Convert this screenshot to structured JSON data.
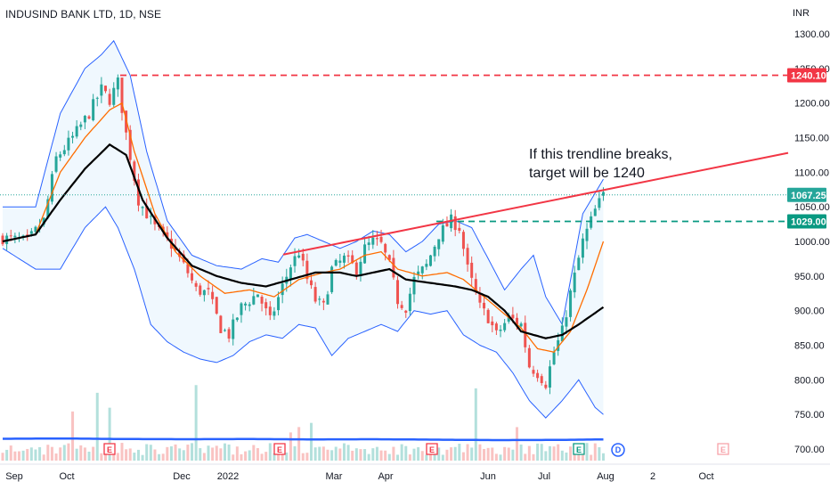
{
  "header": {
    "symbol": "INDUSIND BANK LTD, 1D, NSE",
    "currency": "INR"
  },
  "colors": {
    "up": "#26a69a",
    "down": "#ef5350",
    "band": "#2962ff",
    "sma": "#000000",
    "ema": "#ff6d00",
    "trend": "#f23645",
    "target": "#f23645",
    "support": "#089981",
    "volume_avg": "#2962ff"
  },
  "chart_data": {
    "type": "candlestick",
    "title": "INDUSIND BANK LTD, 1D, NSE",
    "ylim": [
      685,
      1315
    ],
    "y_ticks": [
      700,
      750,
      800,
      850,
      900,
      950,
      1000,
      1050,
      1100,
      1150,
      1200,
      1250,
      1300
    ],
    "y_tick_labels": [
      "700.00",
      "750.00",
      "800.00",
      "850.00",
      "900.00",
      "950.00",
      "1000.00",
      "1050.00",
      "1100.00",
      "1150.00",
      "1200.00",
      "1250.00",
      "1300.00"
    ],
    "x_ticks": [
      "Sep",
      "Oct",
      "Dec",
      "2022",
      "Mar",
      "Apr",
      "Jun",
      "Jul",
      "Aug",
      "2",
      "Oct"
    ],
    "price_path": [
      [
        0,
        1005
      ],
      [
        6,
        1000
      ],
      [
        10,
        1030
      ],
      [
        13,
        1120
      ],
      [
        17,
        1150
      ],
      [
        21,
        1185
      ],
      [
        24,
        1220
      ],
      [
        26,
        1205
      ],
      [
        28,
        1230
      ],
      [
        30,
        1155
      ],
      [
        33,
        1060
      ],
      [
        37,
        1020
      ],
      [
        41,
        995
      ],
      [
        45,
        955
      ],
      [
        47,
        930
      ],
      [
        50,
        925
      ],
      [
        53,
        875
      ],
      [
        55,
        865
      ],
      [
        58,
        905
      ],
      [
        62,
        925
      ],
      [
        65,
        885
      ],
      [
        68,
        935
      ],
      [
        70,
        965
      ],
      [
        72,
        985
      ],
      [
        74,
        945
      ],
      [
        76,
        915
      ],
      [
        78,
        905
      ],
      [
        80,
        960
      ],
      [
        83,
        975
      ],
      [
        86,
        960
      ],
      [
        88,
        990
      ],
      [
        90,
        1000
      ],
      [
        92,
        995
      ],
      [
        94,
        965
      ],
      [
        96,
        915
      ],
      [
        98,
        905
      ],
      [
        100,
        945
      ],
      [
        103,
        965
      ],
      [
        106,
        1010
      ],
      [
        109,
        1030
      ],
      [
        111,
        1020
      ],
      [
        113,
        960
      ],
      [
        116,
        905
      ],
      [
        118,
        890
      ],
      [
        120,
        865
      ],
      [
        123,
        890
      ],
      [
        126,
        880
      ],
      [
        128,
        820
      ],
      [
        130,
        810
      ],
      [
        132,
        795
      ],
      [
        134,
        840
      ],
      [
        136,
        870
      ],
      [
        138,
        925
      ],
      [
        141,
        1000
      ],
      [
        144,
        1045
      ],
      [
        146,
        1067
      ]
    ],
    "price_path_note": "x in trading-day index, y in INR (close)",
    "bollinger_upper": [
      [
        0,
        1050
      ],
      [
        8,
        1050
      ],
      [
        14,
        1185
      ],
      [
        20,
        1250
      ],
      [
        24,
        1270
      ],
      [
        27,
        1290
      ],
      [
        31,
        1240
      ],
      [
        35,
        1130
      ],
      [
        40,
        1030
      ],
      [
        46,
        980
      ],
      [
        52,
        965
      ],
      [
        58,
        960
      ],
      [
        63,
        975
      ],
      [
        67,
        970
      ],
      [
        71,
        1005
      ],
      [
        74,
        1010
      ],
      [
        78,
        1000
      ],
      [
        82,
        990
      ],
      [
        86,
        1000
      ],
      [
        90,
        1015
      ],
      [
        94,
        1010
      ],
      [
        98,
        985
      ],
      [
        102,
        1000
      ],
      [
        106,
        1025
      ],
      [
        110,
        1030
      ],
      [
        114,
        1020
      ],
      [
        118,
        975
      ],
      [
        122,
        930
      ],
      [
        126,
        960
      ],
      [
        129,
        980
      ],
      [
        132,
        920
      ],
      [
        136,
        880
      ],
      [
        141,
        1040
      ],
      [
        146,
        1090
      ]
    ],
    "bollinger_lower": [
      [
        0,
        990
      ],
      [
        8,
        960
      ],
      [
        14,
        960
      ],
      [
        20,
        1020
      ],
      [
        25,
        1050
      ],
      [
        28,
        1020
      ],
      [
        32,
        960
      ],
      [
        36,
        880
      ],
      [
        40,
        855
      ],
      [
        44,
        840
      ],
      [
        48,
        830
      ],
      [
        52,
        825
      ],
      [
        56,
        835
      ],
      [
        60,
        855
      ],
      [
        64,
        865
      ],
      [
        68,
        860
      ],
      [
        72,
        880
      ],
      [
        76,
        875
      ],
      [
        80,
        835
      ],
      [
        84,
        860
      ],
      [
        88,
        870
      ],
      [
        92,
        880
      ],
      [
        96,
        870
      ],
      [
        100,
        900
      ],
      [
        104,
        895
      ],
      [
        108,
        900
      ],
      [
        112,
        865
      ],
      [
        116,
        850
      ],
      [
        120,
        840
      ],
      [
        124,
        810
      ],
      [
        128,
        770
      ],
      [
        132,
        745
      ],
      [
        136,
        770
      ],
      [
        140,
        800
      ],
      [
        144,
        760
      ],
      [
        146,
        750
      ]
    ],
    "sma_path": [
      [
        0,
        1000
      ],
      [
        8,
        1010
      ],
      [
        14,
        1060
      ],
      [
        20,
        1105
      ],
      [
        26,
        1140
      ],
      [
        30,
        1125
      ],
      [
        34,
        1060
      ],
      [
        40,
        1005
      ],
      [
        46,
        965
      ],
      [
        52,
        950
      ],
      [
        58,
        940
      ],
      [
        64,
        935
      ],
      [
        70,
        945
      ],
      [
        76,
        955
      ],
      [
        82,
        955
      ],
      [
        86,
        950
      ],
      [
        90,
        955
      ],
      [
        94,
        960
      ],
      [
        98,
        945
      ],
      [
        104,
        940
      ],
      [
        110,
        935
      ],
      [
        114,
        930
      ],
      [
        118,
        920
      ],
      [
        122,
        900
      ],
      [
        126,
        870
      ],
      [
        132,
        860
      ],
      [
        136,
        865
      ],
      [
        140,
        880
      ],
      [
        146,
        905
      ]
    ],
    "ema_path": [
      [
        0,
        1000
      ],
      [
        8,
        1010
      ],
      [
        14,
        1100
      ],
      [
        20,
        1150
      ],
      [
        26,
        1190
      ],
      [
        29,
        1200
      ],
      [
        32,
        1130
      ],
      [
        37,
        1040
      ],
      [
        42,
        985
      ],
      [
        48,
        950
      ],
      [
        54,
        925
      ],
      [
        60,
        930
      ],
      [
        66,
        920
      ],
      [
        72,
        945
      ],
      [
        78,
        955
      ],
      [
        82,
        960
      ],
      [
        88,
        980
      ],
      [
        92,
        985
      ],
      [
        96,
        960
      ],
      [
        102,
        950
      ],
      [
        108,
        955
      ],
      [
        112,
        945
      ],
      [
        116,
        925
      ],
      [
        120,
        905
      ],
      [
        126,
        875
      ],
      [
        130,
        845
      ],
      [
        134,
        840
      ],
      [
        138,
        870
      ],
      [
        142,
        930
      ],
      [
        146,
        1000
      ]
    ],
    "volume_avg_path": [
      [
        0,
        0.45
      ],
      [
        15,
        0.48
      ],
      [
        30,
        0.42
      ],
      [
        45,
        0.4
      ],
      [
        60,
        0.42
      ],
      [
        75,
        0.38
      ],
      [
        90,
        0.4
      ],
      [
        105,
        0.35
      ],
      [
        120,
        0.3
      ],
      [
        135,
        0.32
      ],
      [
        146,
        0.38
      ]
    ],
    "trendline": {
      "from_price": 981,
      "to_price": 1128
    },
    "levels": [
      {
        "name": "target",
        "price": 1240.1,
        "label": "1240.10"
      },
      {
        "name": "last",
        "price": 1067.25,
        "label": "1067.25"
      },
      {
        "name": "support",
        "price": 1029.0,
        "label": "1029.00"
      }
    ],
    "annotation_lines": [
      "If this trendline breaks,",
      "target will be 1240"
    ],
    "event_markers": [
      {
        "label": "E",
        "kind": "earnings-past"
      },
      {
        "label": "E",
        "kind": "earnings-past"
      },
      {
        "label": "E",
        "kind": "earnings-past"
      },
      {
        "label": "E",
        "kind": "earnings-green"
      },
      {
        "label": "D",
        "kind": "dividend"
      },
      {
        "label": "E",
        "kind": "earnings-future"
      }
    ],
    "grid": false,
    "legend": "none"
  }
}
